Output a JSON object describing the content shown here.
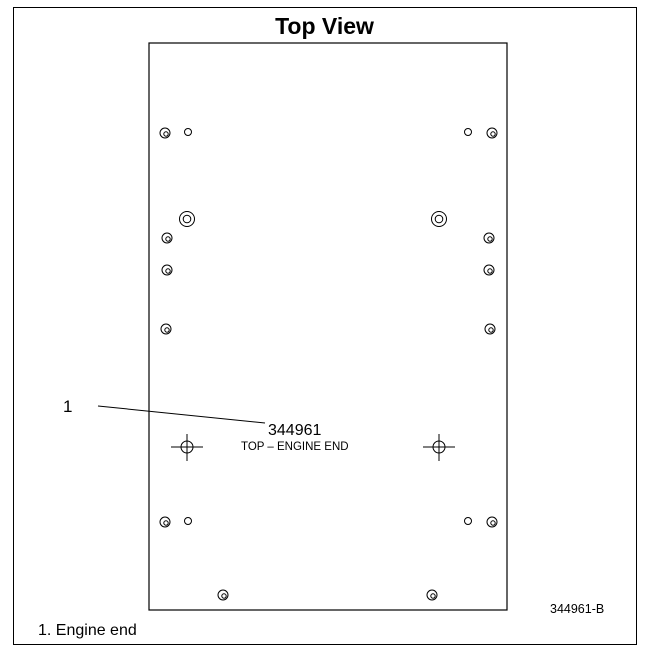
{
  "diagram": {
    "title": "Top View",
    "callout_number": "1",
    "part_number": "344961",
    "part_description": "TOP – ENGINE END",
    "figure_id": "344961-B",
    "caption": "1.  Engine end"
  },
  "colors": {
    "line": "#000000",
    "background": "#ffffff"
  }
}
